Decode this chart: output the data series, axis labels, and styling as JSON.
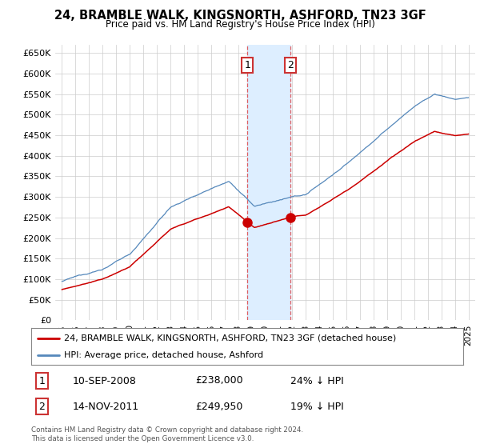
{
  "title": "24, BRAMBLE WALK, KINGSNORTH, ASHFORD, TN23 3GF",
  "subtitle": "Price paid vs. HM Land Registry's House Price Index (HPI)",
  "ylabel_ticks": [
    "£0",
    "£50K",
    "£100K",
    "£150K",
    "£200K",
    "£250K",
    "£300K",
    "£350K",
    "£400K",
    "£450K",
    "£500K",
    "£550K",
    "£600K",
    "£650K"
  ],
  "ytick_values": [
    0,
    50000,
    100000,
    150000,
    200000,
    250000,
    300000,
    350000,
    400000,
    450000,
    500000,
    550000,
    600000,
    650000
  ],
  "xlim": [
    1994.5,
    2025.5
  ],
  "ylim": [
    0,
    670000
  ],
  "transactions": [
    {
      "date_num": 2008.69,
      "price": 238000,
      "label": "1"
    },
    {
      "date_num": 2011.87,
      "price": 249950,
      "label": "2"
    }
  ],
  "transaction_table": [
    {
      "num": "1",
      "date": "10-SEP-2008",
      "price": "£238,000",
      "note": "24% ↓ HPI"
    },
    {
      "num": "2",
      "date": "14-NOV-2011",
      "price": "£249,950",
      "note": "19% ↓ HPI"
    }
  ],
  "highlight_x_start": 2008.69,
  "highlight_x_end": 2011.87,
  "red_line_color": "#cc0000",
  "blue_line_color": "#5588bb",
  "highlight_color": "#ddeeff",
  "grid_color": "#cccccc",
  "background_color": "#ffffff",
  "legend_address": "24, BRAMBLE WALK, KINGSNORTH, ASHFORD, TN23 3GF (detached house)",
  "legend_hpi": "HPI: Average price, detached house, Ashford",
  "footer": "Contains HM Land Registry data © Crown copyright and database right 2024.\nThis data is licensed under the Open Government Licence v3.0."
}
